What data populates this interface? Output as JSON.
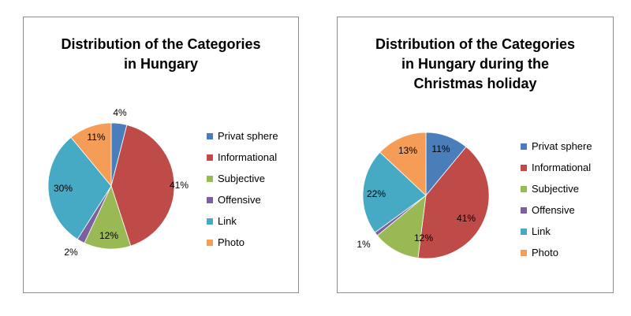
{
  "colors": {
    "Privat sphere": "#4a7ebb",
    "Informational": "#be4b48",
    "Subjective": "#98b954",
    "Offensive": "#7d60a0",
    "Link": "#46aac4",
    "Photo": "#f59d56"
  },
  "chart_data": [
    {
      "type": "pie",
      "title": "Distribution of the Categories\nin Hungary",
      "categories": [
        "Privat sphere",
        "Informational",
        "Subjective",
        "Offensive",
        "Link",
        "Photo"
      ],
      "values": [
        4,
        41,
        12,
        2,
        30,
        11
      ],
      "labels": [
        "4%",
        "41%",
        "12%",
        "2%",
        "30%",
        "11%"
      ],
      "legend": "right"
    },
    {
      "type": "pie",
      "title": "Distribution of the Categories\nin Hungary during the\nChristmas holiday",
      "categories": [
        "Privat sphere",
        "Informational",
        "Subjective",
        "Offensive",
        "Link",
        "Photo"
      ],
      "values": [
        11,
        41,
        12,
        1,
        22,
        13
      ],
      "labels": [
        "11%",
        "41%",
        "12%",
        "1%",
        "22%",
        "13%"
      ],
      "legend": "right"
    }
  ]
}
